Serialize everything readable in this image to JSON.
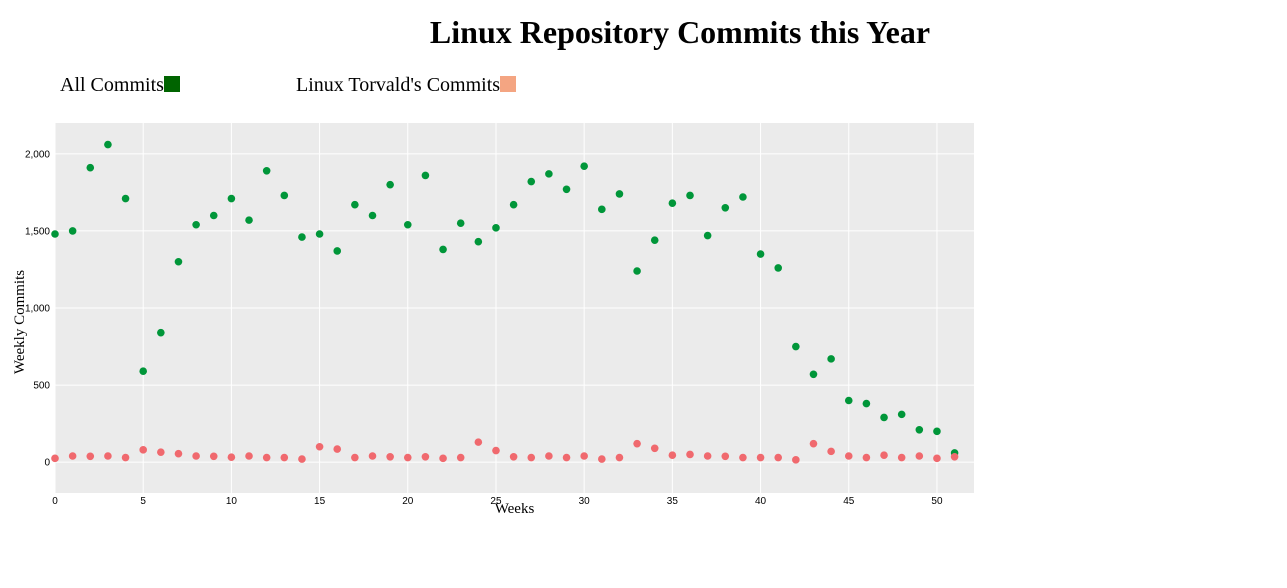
{
  "chart_data": {
    "type": "scatter",
    "title": "Linux Repository Commits this Year",
    "xlabel": "Weeks",
    "ylabel": "Weekly Commits",
    "xlim": [
      0,
      52.1
    ],
    "ylim": [
      -200,
      2200
    ],
    "x_ticks": [
      0,
      5,
      10,
      15,
      20,
      25,
      30,
      35,
      40,
      45,
      50
    ],
    "y_ticks": [
      0,
      500,
      1000,
      1500,
      2000
    ],
    "y_tick_labels": [
      "0",
      "500",
      "1,000",
      "1,500",
      "2,000"
    ],
    "grid": true,
    "legend_position": "top-left",
    "series": [
      {
        "name": "All Commits",
        "legend_color": "#006400",
        "point_color": "#009639",
        "x": [
          0,
          1,
          2,
          3,
          4,
          5,
          6,
          7,
          8,
          9,
          10,
          11,
          12,
          13,
          14,
          15,
          16,
          17,
          18,
          19,
          20,
          21,
          22,
          23,
          24,
          25,
          26,
          27,
          28,
          29,
          30,
          31,
          32,
          33,
          34,
          35,
          36,
          37,
          38,
          39,
          40,
          41,
          42,
          43,
          44,
          45,
          46,
          47,
          48,
          49,
          50,
          51
        ],
        "values": [
          1480,
          1500,
          1910,
          2060,
          1710,
          590,
          840,
          1300,
          1540,
          1600,
          1710,
          1570,
          1890,
          1730,
          1460,
          1480,
          1370,
          1670,
          1600,
          1800,
          1540,
          1860,
          1380,
          1550,
          1430,
          1520,
          1670,
          1820,
          1870,
          1770,
          1920,
          1640,
          1740,
          1240,
          1440,
          1680,
          1730,
          1470,
          1650,
          1720,
          1350,
          1260,
          750,
          570,
          670,
          400,
          380,
          290,
          310,
          210,
          200,
          60
        ]
      },
      {
        "name": "Linux Torvald's Commits",
        "legend_color": "#f4a582",
        "point_color": "#f0696e",
        "x": [
          0,
          1,
          2,
          3,
          4,
          5,
          6,
          7,
          8,
          9,
          10,
          11,
          12,
          13,
          14,
          15,
          16,
          17,
          18,
          19,
          20,
          21,
          22,
          23,
          24,
          25,
          26,
          27,
          28,
          29,
          30,
          31,
          32,
          33,
          34,
          35,
          36,
          37,
          38,
          39,
          40,
          41,
          42,
          43,
          44,
          45,
          46,
          47,
          48,
          49,
          50,
          51
        ],
        "values": [
          25,
          40,
          38,
          40,
          30,
          80,
          65,
          55,
          40,
          38,
          32,
          40,
          30,
          30,
          20,
          100,
          85,
          30,
          40,
          35,
          30,
          35,
          25,
          30,
          130,
          75,
          35,
          30,
          40,
          30,
          40,
          20,
          30,
          120,
          90,
          45,
          50,
          40,
          38,
          30,
          30,
          30,
          15,
          120,
          70,
          40,
          30,
          45,
          30,
          40,
          25,
          35
        ]
      }
    ]
  }
}
